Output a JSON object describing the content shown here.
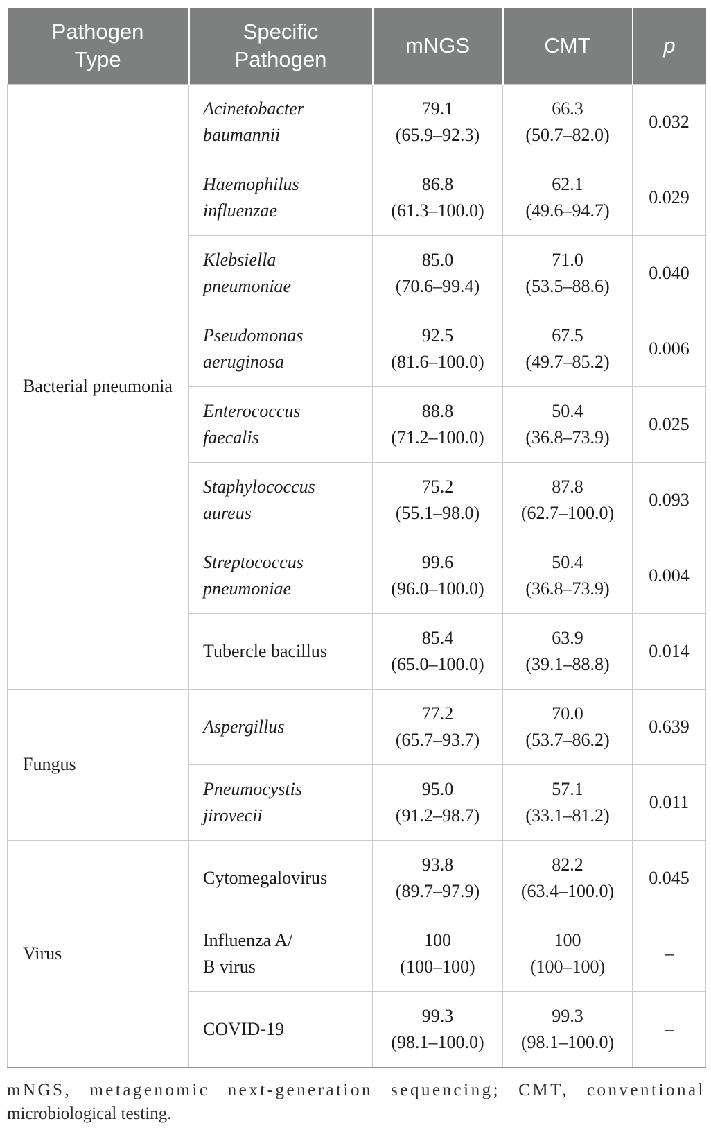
{
  "table": {
    "header": {
      "pathogen_type": "Pathogen Type",
      "specific_pathogen": "Specific Pathogen",
      "mngs": "mNGS",
      "cmt": "CMT",
      "p": "p"
    },
    "groups": [
      {
        "label": "Bacterial pneumonia",
        "rows": [
          {
            "name_line1": "Acinetobacter",
            "name_line2": "baumannii",
            "mngs": "79.1",
            "mngs_ci": "(65.9–92.3)",
            "cmt": "66.3",
            "cmt_ci": "(50.7–82.0)",
            "p": "0.032"
          },
          {
            "name_line1": "Haemophilus",
            "name_line2": "influenzae",
            "mngs": "86.8",
            "mngs_ci": "(61.3–100.0)",
            "cmt": "62.1",
            "cmt_ci": "(49.6–94.7)",
            "p": "0.029"
          },
          {
            "name_line1": "Klebsiella",
            "name_line2": "pneumoniae",
            "mngs": "85.0",
            "mngs_ci": "(70.6–99.4)",
            "cmt": "71.0",
            "cmt_ci": "(53.5–88.6)",
            "p": "0.040"
          },
          {
            "name_line1": "Pseudomonas",
            "name_line2": "aeruginosa",
            "mngs": "92.5",
            "mngs_ci": "(81.6–100.0)",
            "cmt": "67.5",
            "cmt_ci": "(49.7–85.2)",
            "p": "0.006"
          },
          {
            "name_line1": "Enterococcus",
            "name_line2": "faecalis",
            "mngs": "88.8",
            "mngs_ci": "(71.2–100.0)",
            "cmt": "50.4",
            "cmt_ci": "(36.8–73.9)",
            "p": "0.025"
          },
          {
            "name_line1": "Staphylococcus",
            "name_line2": "aureus",
            "mngs": "75.2",
            "mngs_ci": "(55.1–98.0)",
            "cmt": "87.8",
            "cmt_ci": "(62.7–100.0)",
            "p": "0.093"
          },
          {
            "name_line1": "Streptococcus",
            "name_line2": "pneumoniae",
            "mngs": "99.6",
            "mngs_ci": "(96.0–100.0)",
            "cmt": "50.4",
            "cmt_ci": "(36.8–73.9)",
            "p": "0.004"
          },
          {
            "name_line1": "Tubercle bacillus",
            "mngs": "85.4",
            "mngs_ci": "(65.0–100.0)",
            "cmt": "63.9",
            "cmt_ci": "(39.1–88.8)",
            "p": "0.014"
          }
        ]
      },
      {
        "label": "Fungus",
        "rows": [
          {
            "name_line1": "Aspergillus",
            "mngs": "77.2",
            "mngs_ci": "(65.7–93.7)",
            "cmt": "70.0",
            "cmt_ci": "(53.7–86.2)",
            "p": "0.639"
          },
          {
            "name_line1": "Pneumocystis",
            "name_line2": "jirovecii",
            "mngs": "95.0",
            "mngs_ci": "(91.2–98.7)",
            "cmt": "57.1",
            "cmt_ci": "(33.1–81.2)",
            "p": "0.011"
          }
        ]
      },
      {
        "label": "Virus",
        "rows": [
          {
            "name_line1": "Cytomegalovirus",
            "mngs": "93.8",
            "mngs_ci": "(89.7–97.9)",
            "cmt": "82.2",
            "cmt_ci": "(63.4–100.0)",
            "p": "0.045"
          },
          {
            "name_line1": "Influenza A/",
            "name_line2": "B virus",
            "mngs": "100",
            "mngs_ci": "(100–100)",
            "cmt": "100",
            "cmt_ci": "(100–100)",
            "p": "–"
          },
          {
            "name_line1": "COVID-19",
            "mngs": "99.3",
            "mngs_ci": "(98.1–100.0)",
            "cmt": "99.3",
            "cmt_ci": "(98.1–100.0)",
            "p": "–"
          }
        ]
      }
    ],
    "footnote": "mNGS, metagenomic next-generation sequencing; CMT, conventional microbiological testing."
  },
  "colors": {
    "header_bg": "#7e7f7f",
    "header_text": "#ffffff",
    "grid_line": "#c9c9c9",
    "body_text": "#1c1c1c"
  }
}
